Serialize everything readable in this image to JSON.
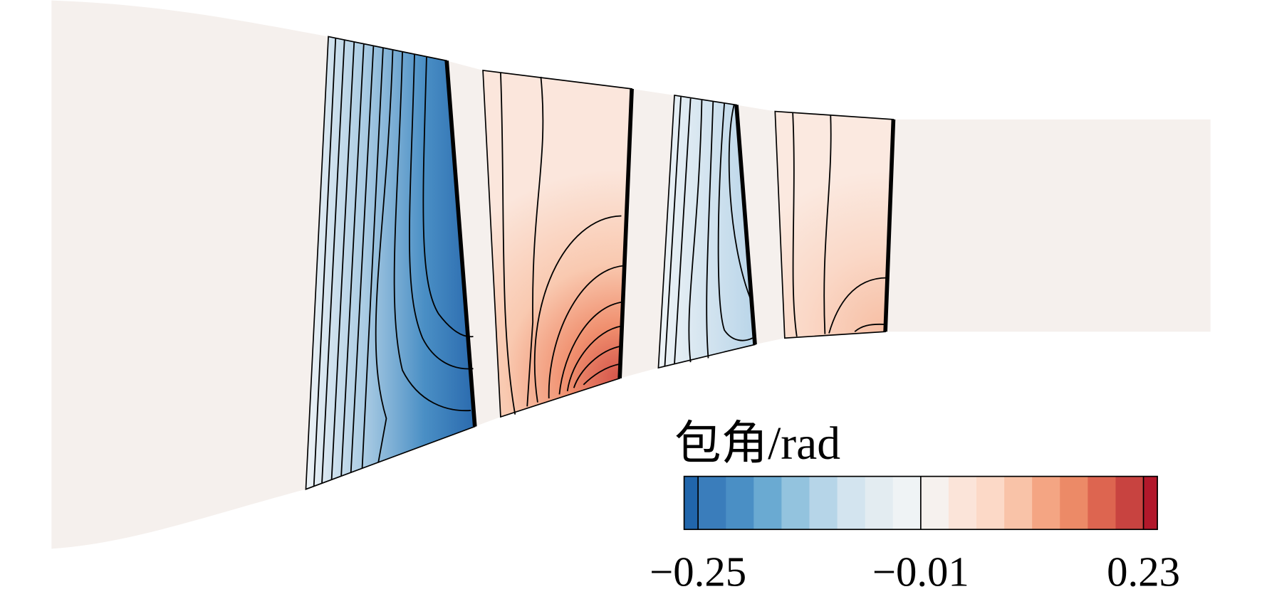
{
  "chart_data": {
    "type": "contour",
    "colorbar": {
      "title": "包角/rad",
      "lim": [
        -0.265,
        0.245
      ],
      "levels": [
        -0.25,
        -0.22,
        -0.19,
        -0.16,
        -0.13,
        -0.1,
        -0.07,
        -0.04,
        -0.01,
        0.02,
        0.05,
        0.08,
        0.11,
        0.14,
        0.17,
        0.2,
        0.23
      ],
      "colors": [
        "#2166ac",
        "#3a7dbb",
        "#4a8fc5",
        "#6aaad2",
        "#93c3de",
        "#b6d5e8",
        "#d3e4ef",
        "#e3ecf1",
        "#eff3f5",
        "#f6f1ee",
        "#fbe4d9",
        "#fcd9c7",
        "#f9c3a8",
        "#f4a583",
        "#ec8a67",
        "#dd6550",
        "#c84340",
        "#b2182b"
      ],
      "ticks": [
        {
          "value": -0.25,
          "label": "−0.25"
        },
        {
          "value": -0.01,
          "label": "−0.01"
        },
        {
          "value": 0.23,
          "label": "0.23"
        }
      ]
    }
  }
}
